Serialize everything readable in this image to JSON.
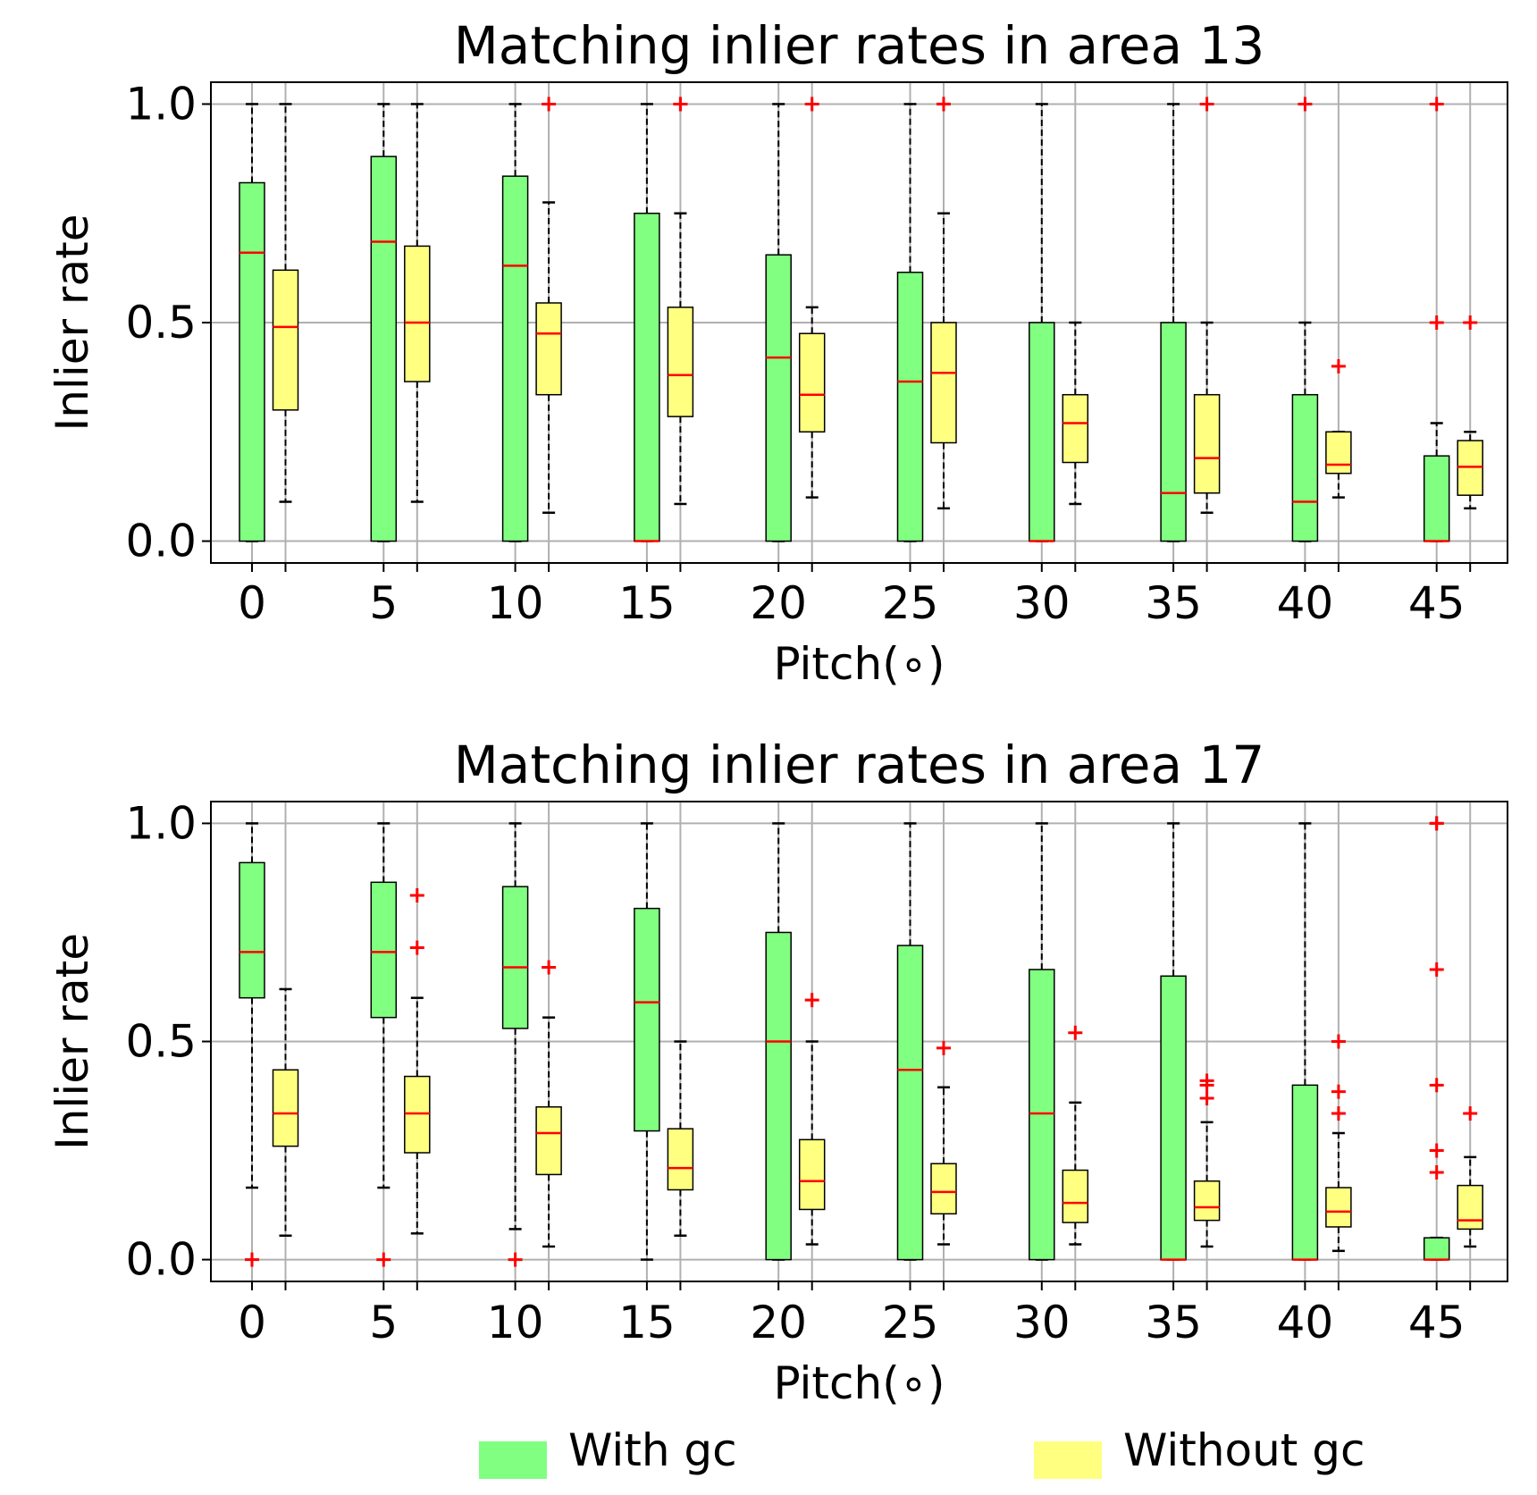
{
  "legend": [
    {
      "label": "With gc",
      "color": "#80ff80"
    },
    {
      "label": "Without gc",
      "color": "#ffff80"
    }
  ],
  "colors": {
    "median": "#ff0000",
    "outlier": "#ff0000",
    "grid": "#b0b0b0",
    "edge": "#000000"
  },
  "chart_data": [
    {
      "type": "boxplot",
      "title": "Matching inlier rates in area 13",
      "xlabel": "Pitch(∘)",
      "ylabel": "Inlier rate",
      "ylim": [
        -0.05,
        1.05
      ],
      "yticks": [
        "0.0",
        "0.5",
        "1.0"
      ],
      "categories": [
        "0",
        "5",
        "10",
        "15",
        "20",
        "25",
        "30",
        "35",
        "40",
        "45"
      ],
      "series": [
        {
          "name": "With gc",
          "boxes": [
            {
              "whislo": 0,
              "q1": 0,
              "med": 0.66,
              "q3": 0.82,
              "whishi": 1.0,
              "fliers": []
            },
            {
              "whislo": 0,
              "q1": 0,
              "med": 0.685,
              "q3": 0.88,
              "whishi": 1.0,
              "fliers": []
            },
            {
              "whislo": 0,
              "q1": 0,
              "med": 0.63,
              "q3": 0.835,
              "whishi": 1.0,
              "fliers": []
            },
            {
              "whislo": 0,
              "q1": 0,
              "med": 0.0,
              "q3": 0.75,
              "whishi": 1.0,
              "fliers": []
            },
            {
              "whislo": 0,
              "q1": 0,
              "med": 0.42,
              "q3": 0.655,
              "whishi": 1.0,
              "fliers": []
            },
            {
              "whislo": 0,
              "q1": 0,
              "med": 0.365,
              "q3": 0.615,
              "whishi": 1.0,
              "fliers": []
            },
            {
              "whislo": 0,
              "q1": 0,
              "med": 0.0,
              "q3": 0.5,
              "whishi": 1.0,
              "fliers": []
            },
            {
              "whislo": 0,
              "q1": 0,
              "med": 0.11,
              "q3": 0.5,
              "whishi": 1.0,
              "fliers": []
            },
            {
              "whislo": 0,
              "q1": 0,
              "med": 0.09,
              "q3": 0.335,
              "whishi": 0.5,
              "fliers": [
                1.0
              ]
            },
            {
              "whislo": 0,
              "q1": 0,
              "med": 0.0,
              "q3": 0.195,
              "whishi": 0.27,
              "fliers": [
                0.5,
                1.0
              ]
            }
          ]
        },
        {
          "name": "Without gc",
          "boxes": [
            {
              "whislo": 0.09,
              "q1": 0.3,
              "med": 0.49,
              "q3": 0.62,
              "whishi": 1.0,
              "fliers": []
            },
            {
              "whislo": 0.09,
              "q1": 0.365,
              "med": 0.5,
              "q3": 0.675,
              "whishi": 1.0,
              "fliers": []
            },
            {
              "whislo": 0.065,
              "q1": 0.335,
              "med": 0.475,
              "q3": 0.545,
              "whishi": 0.775,
              "fliers": [
                1.0
              ]
            },
            {
              "whislo": 0.085,
              "q1": 0.285,
              "med": 0.38,
              "q3": 0.535,
              "whishi": 0.75,
              "fliers": [
                1.0,
                1.0
              ]
            },
            {
              "whislo": 0.1,
              "q1": 0.25,
              "med": 0.335,
              "q3": 0.475,
              "whishi": 0.535,
              "fliers": [
                1.0
              ]
            },
            {
              "whislo": 0.075,
              "q1": 0.225,
              "med": 0.385,
              "q3": 0.5,
              "whishi": 0.75,
              "fliers": [
                1.0,
                1.0
              ]
            },
            {
              "whislo": 0.085,
              "q1": 0.18,
              "med": 0.27,
              "q3": 0.335,
              "whishi": 0.5,
              "fliers": []
            },
            {
              "whislo": 0.065,
              "q1": 0.11,
              "med": 0.19,
              "q3": 0.335,
              "whishi": 0.5,
              "fliers": [
                1.0
              ]
            },
            {
              "whislo": 0.1,
              "q1": 0.155,
              "med": 0.175,
              "q3": 0.25,
              "whishi": 0.25,
              "fliers": [
                0.4
              ]
            },
            {
              "whislo": 0.075,
              "q1": 0.105,
              "med": 0.17,
              "q3": 0.23,
              "whishi": 0.25,
              "fliers": [
                0.5
              ]
            }
          ]
        }
      ]
    },
    {
      "type": "boxplot",
      "title": "Matching inlier rates in area 17",
      "xlabel": "Pitch(∘)",
      "ylabel": "Inlier rate",
      "ylim": [
        -0.05,
        1.05
      ],
      "yticks": [
        "0.0",
        "0.5",
        "1.0"
      ],
      "categories": [
        "0",
        "5",
        "10",
        "15",
        "20",
        "25",
        "30",
        "35",
        "40",
        "45"
      ],
      "series": [
        {
          "name": "With gc",
          "boxes": [
            {
              "whislo": 0.165,
              "q1": 0.6,
              "med": 0.705,
              "q3": 0.91,
              "whishi": 1.0,
              "fliers": [
                0.0
              ]
            },
            {
              "whislo": 0.165,
              "q1": 0.555,
              "med": 0.705,
              "q3": 0.865,
              "whishi": 1.0,
              "fliers": [
                0.0
              ]
            },
            {
              "whislo": 0.07,
              "q1": 0.53,
              "med": 0.67,
              "q3": 0.855,
              "whishi": 1.0,
              "fliers": [
                0.0
              ]
            },
            {
              "whislo": 0.0,
              "q1": 0.295,
              "med": 0.59,
              "q3": 0.805,
              "whishi": 1.0,
              "fliers": []
            },
            {
              "whislo": 0,
              "q1": 0,
              "med": 0.5,
              "q3": 0.75,
              "whishi": 1.0,
              "fliers": []
            },
            {
              "whislo": 0,
              "q1": 0,
              "med": 0.435,
              "q3": 0.72,
              "whishi": 1.0,
              "fliers": []
            },
            {
              "whislo": 0,
              "q1": 0,
              "med": 0.335,
              "q3": 0.665,
              "whishi": 1.0,
              "fliers": []
            },
            {
              "whislo": 0,
              "q1": 0,
              "med": 0.0,
              "q3": 0.65,
              "whishi": 1.0,
              "fliers": []
            },
            {
              "whislo": 0,
              "q1": 0,
              "med": 0.0,
              "q3": 0.4,
              "whishi": 1.0,
              "fliers": []
            },
            {
              "whislo": 0,
              "q1": 0,
              "med": 0.0,
              "q3": 0.05,
              "whishi": 0.05,
              "fliers": [
                0.2,
                0.25,
                0.4,
                0.665,
                1.0,
                1.0
              ]
            }
          ]
        },
        {
          "name": "Without gc",
          "boxes": [
            {
              "whislo": 0.055,
              "q1": 0.26,
              "med": 0.335,
              "q3": 0.435,
              "whishi": 0.62,
              "fliers": []
            },
            {
              "whislo": 0.06,
              "q1": 0.245,
              "med": 0.335,
              "q3": 0.42,
              "whishi": 0.6,
              "fliers": [
                0.715,
                0.835
              ]
            },
            {
              "whislo": 0.03,
              "q1": 0.195,
              "med": 0.29,
              "q3": 0.35,
              "whishi": 0.555,
              "fliers": [
                0.67
              ]
            },
            {
              "whislo": 0.055,
              "q1": 0.16,
              "med": 0.21,
              "q3": 0.3,
              "whishi": 0.5,
              "fliers": []
            },
            {
              "whislo": 0.035,
              "q1": 0.115,
              "med": 0.18,
              "q3": 0.275,
              "whishi": 0.5,
              "fliers": [
                0.595
              ]
            },
            {
              "whislo": 0.035,
              "q1": 0.105,
              "med": 0.155,
              "q3": 0.22,
              "whishi": 0.395,
              "fliers": [
                0.485
              ]
            },
            {
              "whislo": 0.035,
              "q1": 0.085,
              "med": 0.13,
              "q3": 0.205,
              "whishi": 0.36,
              "fliers": [
                0.52
              ]
            },
            {
              "whislo": 0.03,
              "q1": 0.09,
              "med": 0.12,
              "q3": 0.18,
              "whishi": 0.315,
              "fliers": [
                0.37,
                0.4,
                0.41
              ]
            },
            {
              "whislo": 0.02,
              "q1": 0.075,
              "med": 0.11,
              "q3": 0.165,
              "whishi": 0.29,
              "fliers": [
                0.335,
                0.385,
                0.5
              ]
            },
            {
              "whislo": 0.03,
              "q1": 0.07,
              "med": 0.09,
              "q3": 0.17,
              "whishi": 0.235,
              "fliers": [
                0.335
              ]
            }
          ]
        }
      ]
    }
  ]
}
